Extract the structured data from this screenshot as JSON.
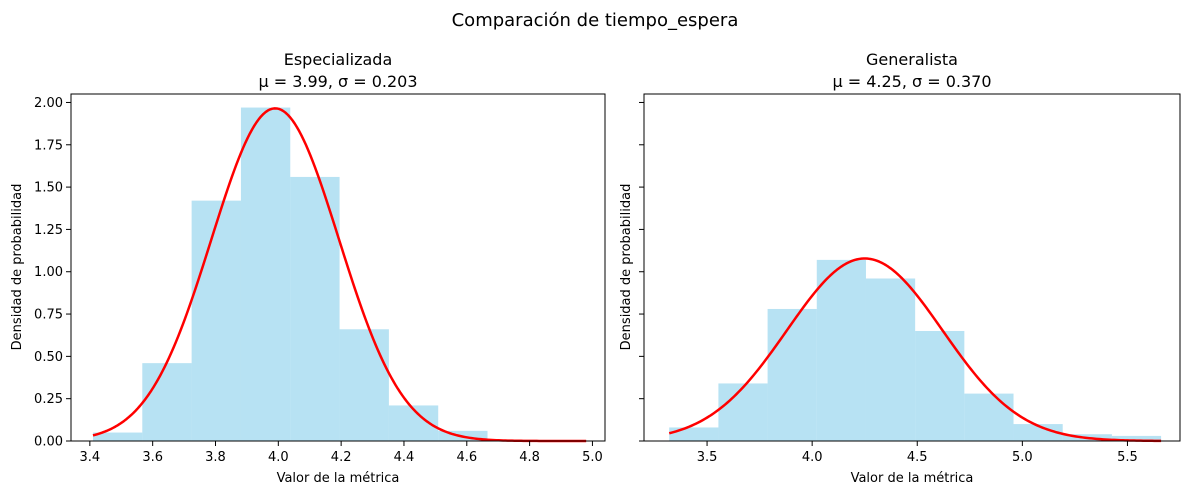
{
  "figure": {
    "suptitle": "Comparación de tiempo_espera"
  },
  "chart_data": [
    {
      "type": "bar",
      "kind": "histogram with normal fit",
      "title": "Especializada",
      "subtitle": "μ = 3.99, σ = 0.203",
      "xlabel": "Valor de la métrica",
      "ylabel": "Densidad de probabilidad",
      "xlim": [
        3.34,
        5.04
      ],
      "ylim": [
        0,
        2.05
      ],
      "xticks": [
        3.4,
        3.6,
        3.8,
        4.0,
        4.2,
        4.4,
        4.6,
        4.8,
        5.0
      ],
      "xtick_labels": [
        "3.4",
        "3.6",
        "3.8",
        "4.0",
        "4.2",
        "4.4",
        "4.6",
        "4.8",
        "5.0"
      ],
      "yticks": [
        0,
        0.25,
        0.5,
        0.75,
        1.0,
        1.25,
        1.5,
        1.75,
        2.0
      ],
      "ytick_labels": [
        "0.00",
        "0.25",
        "0.50",
        "0.75",
        "1.00",
        "1.25",
        "1.50",
        "1.75",
        "2.00"
      ],
      "bins": [
        {
          "x0": 3.41,
          "x1": 3.567,
          "density": 0.05
        },
        {
          "x0": 3.567,
          "x1": 3.724,
          "density": 0.46
        },
        {
          "x0": 3.724,
          "x1": 3.881,
          "density": 1.42
        },
        {
          "x0": 3.881,
          "x1": 4.038,
          "density": 1.97
        },
        {
          "x0": 4.038,
          "x1": 4.195,
          "density": 1.56
        },
        {
          "x0": 4.195,
          "x1": 4.352,
          "density": 0.66
        },
        {
          "x0": 4.352,
          "x1": 4.509,
          "density": 0.21
        },
        {
          "x0": 4.509,
          "x1": 4.666,
          "density": 0.06
        }
      ],
      "fit": {
        "mu": 3.99,
        "sigma": 0.203,
        "x_range": [
          3.41,
          4.98
        ]
      },
      "colors": {
        "bar": "#87ceeb",
        "bar_alpha": 0.6,
        "fit": "#ff0000"
      },
      "grid": false
    },
    {
      "type": "bar",
      "kind": "histogram with normal fit",
      "title": "Generalista",
      "subtitle": "μ = 4.25, σ = 0.370",
      "xlabel": "Valor de la métrica",
      "ylabel": "Densidad de probabilidad",
      "xlim": [
        3.2,
        5.75
      ],
      "ylim": [
        0,
        2.05
      ],
      "xticks": [
        3.5,
        4.0,
        4.5,
        5.0,
        5.5
      ],
      "xtick_labels": [
        "3.5",
        "4.0",
        "4.5",
        "5.0",
        "5.5"
      ],
      "yticks": [
        0,
        0.25,
        0.5,
        0.75,
        1.0,
        1.25,
        1.5,
        1.75,
        2.0
      ],
      "ytick_labels": [],
      "bins": [
        {
          "x0": 3.32,
          "x1": 3.554,
          "density": 0.08
        },
        {
          "x0": 3.554,
          "x1": 3.788,
          "density": 0.34
        },
        {
          "x0": 3.788,
          "x1": 4.022,
          "density": 0.78
        },
        {
          "x0": 4.022,
          "x1": 4.256,
          "density": 1.07
        },
        {
          "x0": 4.256,
          "x1": 4.49,
          "density": 0.96
        },
        {
          "x0": 4.49,
          "x1": 4.724,
          "density": 0.65
        },
        {
          "x0": 4.724,
          "x1": 4.958,
          "density": 0.28
        },
        {
          "x0": 4.958,
          "x1": 5.192,
          "density": 0.1
        },
        {
          "x0": 5.192,
          "x1": 5.426,
          "density": 0.04
        },
        {
          "x0": 5.426,
          "x1": 5.66,
          "density": 0.03
        }
      ],
      "fit": {
        "mu": 4.25,
        "sigma": 0.37,
        "x_range": [
          3.32,
          5.66
        ]
      },
      "colors": {
        "bar": "#87ceeb",
        "bar_alpha": 0.6,
        "fit": "#ff0000"
      },
      "grid": false
    }
  ]
}
